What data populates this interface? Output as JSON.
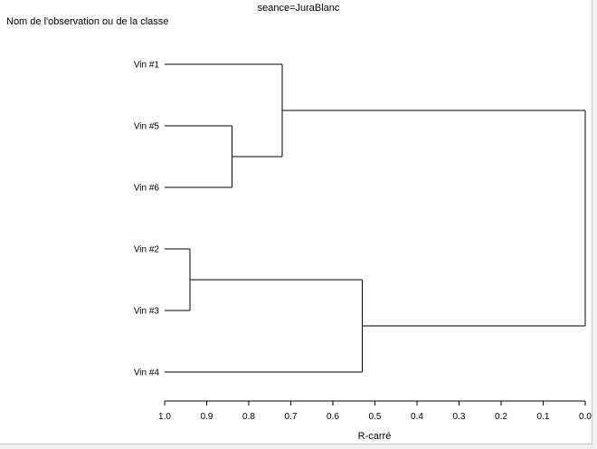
{
  "chart_data": {
    "type": "dendrogram",
    "title": "seance=JuraBlanc",
    "ylabel": "Nom de l'observation ou de la classe",
    "xlabel": "R-carré",
    "xlim": [
      1.0,
      0.0
    ],
    "xticks": [
      1.0,
      0.9,
      0.8,
      0.7,
      0.6,
      0.5,
      0.4,
      0.3,
      0.2,
      0.1,
      0.0
    ],
    "xtick_labels": [
      "1.0",
      "0.9",
      "0.8",
      "0.7",
      "0.6",
      "0.5",
      "0.4",
      "0.3",
      "0.2",
      "0.1",
      "0.0"
    ],
    "leaves": [
      "Vin #1",
      "Vin #5",
      "Vin #6",
      "Vin #2",
      "Vin #3",
      "Vin #4"
    ],
    "merges": [
      {
        "members": [
          "Vin #2",
          "Vin #3"
        ],
        "r_square": 0.94
      },
      {
        "members": [
          "Vin #5",
          "Vin #6"
        ],
        "r_square": 0.84
      },
      {
        "members": [
          "Vin #1",
          "Vin #5",
          "Vin #6"
        ],
        "r_square": 0.72
      },
      {
        "members": [
          "Vin #2",
          "Vin #3",
          "Vin #4"
        ],
        "r_square": 0.53
      },
      {
        "members": [
          "Vin #1",
          "Vin #5",
          "Vin #6",
          "Vin #2",
          "Vin #3",
          "Vin #4"
        ],
        "r_square": 0.0
      }
    ],
    "grid": false,
    "legend": "none"
  }
}
